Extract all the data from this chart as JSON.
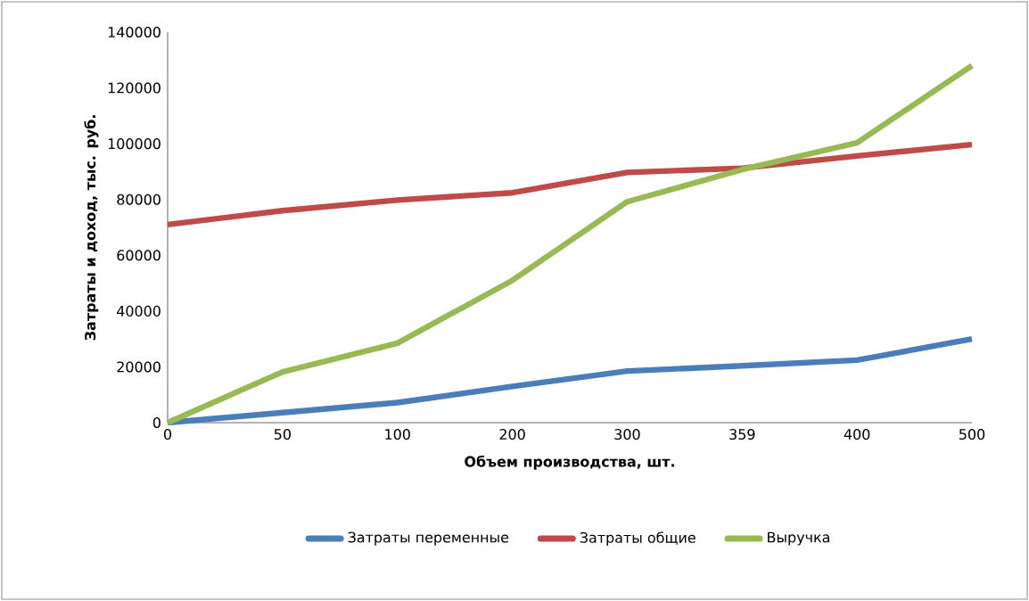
{
  "chart_data": {
    "type": "line",
    "xlabel": "Объем производства,  шт.",
    "ylabel": "Затраты и доход, тыс. руб.",
    "categories": [
      "0",
      "50",
      "100",
      "200",
      "300",
      "359",
      "400",
      "500"
    ],
    "ylim": [
      0,
      140000
    ],
    "yticks": [
      0,
      20000,
      40000,
      60000,
      80000,
      100000,
      120000,
      140000
    ],
    "grid": false,
    "legend": "bottom",
    "marker": "none",
    "line_style": "solid",
    "series": [
      {
        "name": "Затраты переменные",
        "color": "#4a7ebb",
        "values": [
          0,
          3600,
          7200,
          13000,
          18500,
          20400,
          22400,
          30000
        ]
      },
      {
        "name": "Затраты общие",
        "color": "#be4b48",
        "values": [
          71000,
          76000,
          79800,
          82400,
          89700,
          91200,
          95600,
          99700
        ]
      },
      {
        "name": "Выручка",
        "color": "#98b954",
        "values": [
          0,
          18200,
          28500,
          51000,
          79200,
          90700,
          100300,
          128000
        ]
      }
    ]
  }
}
